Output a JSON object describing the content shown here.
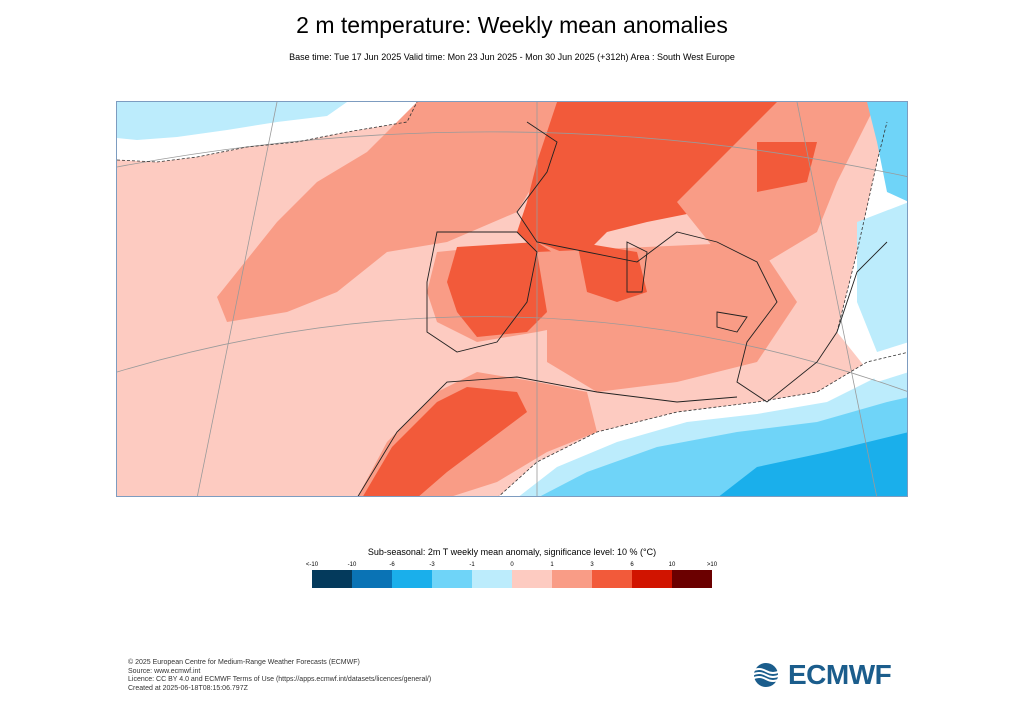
{
  "header": {
    "title": "2 m temperature: Weekly mean anomalies",
    "subtitle": "Base time: Tue 17 Jun 2025 Valid time: Mon 23 Jun 2025 - Mon 30 Jun 2025 (+312h) Area : South West Europe"
  },
  "legend": {
    "title": "Sub-seasonal: 2m T weekly mean anomaly, significance level: 10 % (°C)",
    "ticks": [
      "<-10",
      "-10",
      "-6",
      "-3",
      "-1",
      "0",
      "1",
      "3",
      "6",
      "10",
      ">10"
    ],
    "colors": [
      "#043a5c",
      "#0a73b5",
      "#1aafeb",
      "#6fd4f8",
      "#bcecfc",
      "#ffffff",
      "#fdcbc1",
      "#f99c86",
      "#f25a3a",
      "#d11400",
      "#6b0000"
    ]
  },
  "map": {
    "area": "South West Europe",
    "anomaly_colors": {
      "plus_1_3": "#fdcbc1",
      "plus_3_6": "#f99c86",
      "plus_6_10": "#f25a3a",
      "neutral": "#ffffff",
      "minus_1_3": "#bcecfc",
      "minus_3_6": "#6fd4f8",
      "minus_6_10": "#1aafeb"
    }
  },
  "footer": {
    "copyright": "© 2025 European Centre for Medium-Range Weather Forecasts (ECMWF)",
    "source": "Source: www.ecmwf.int",
    "licence": "Licence: CC BY 4.0 and ECMWF Terms of Use (https://apps.ecmwf.int/datasets/licences/general/)",
    "created": "Created at 2025-06-18T08:15:06.797Z"
  },
  "logo": {
    "text": "ECMWF"
  }
}
